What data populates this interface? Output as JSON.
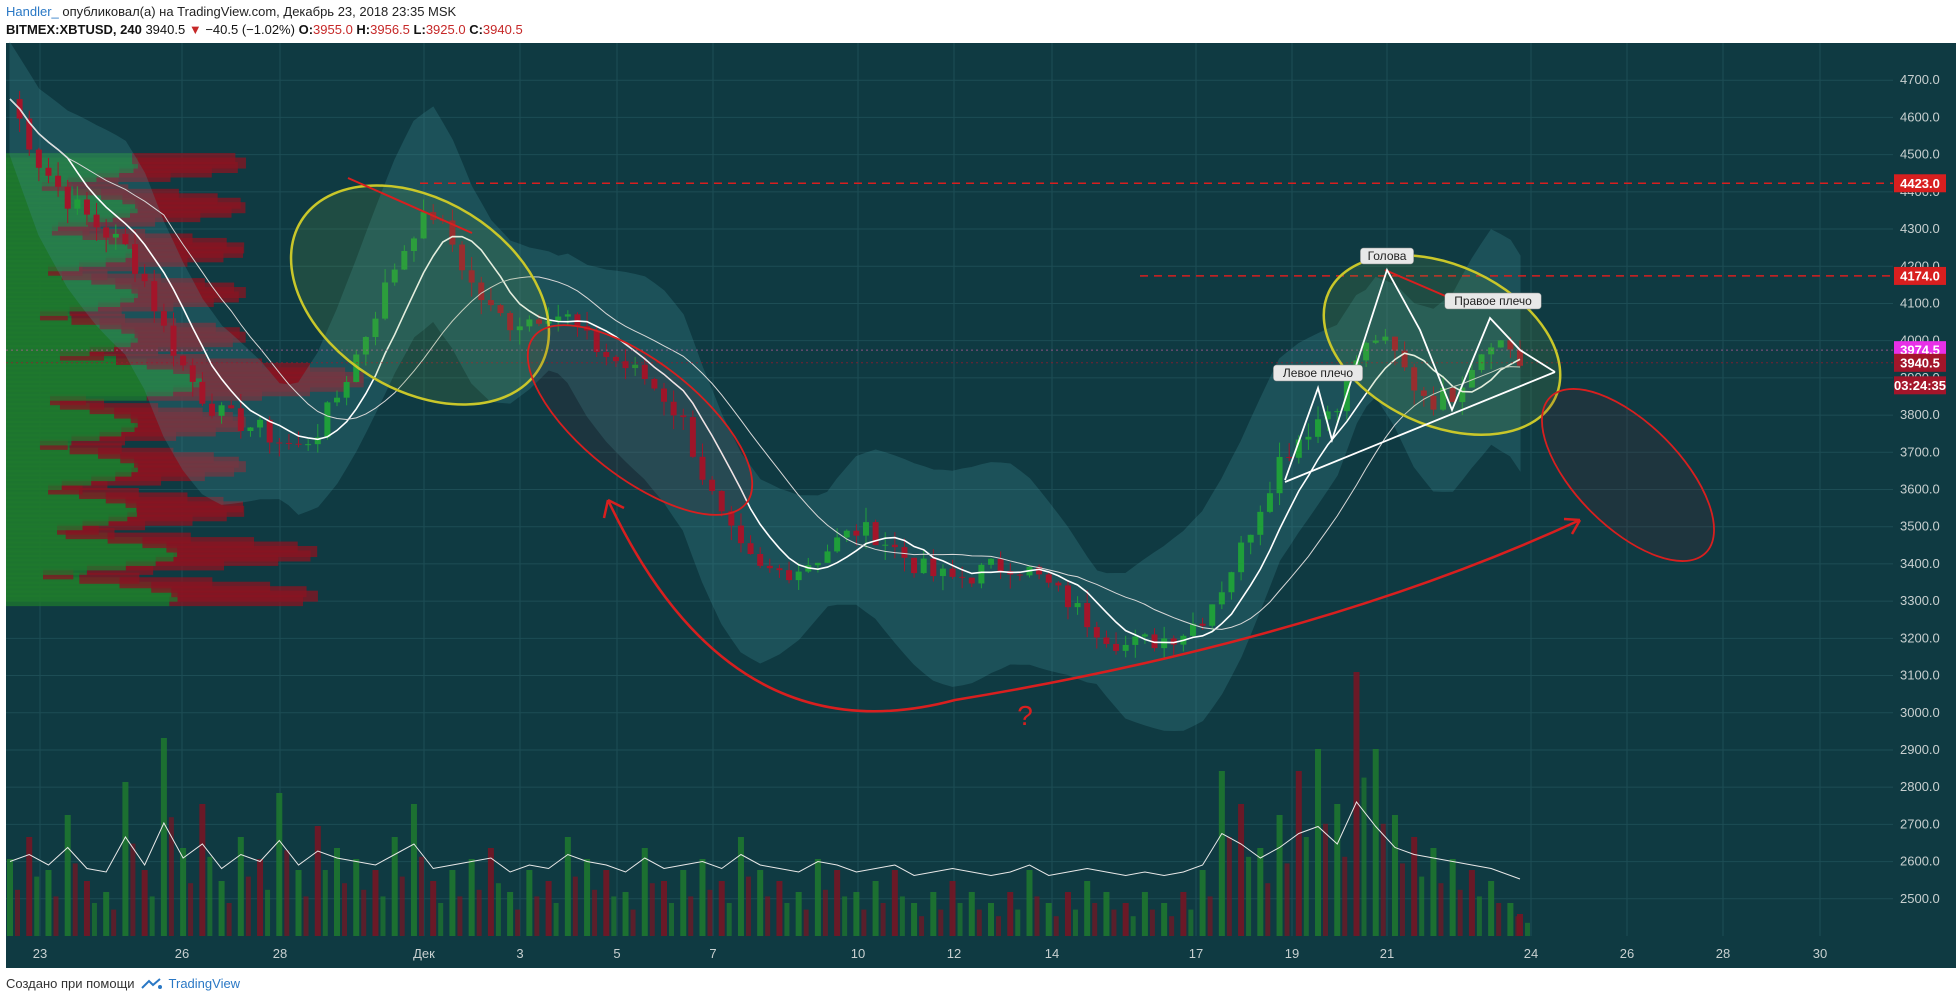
{
  "header": {
    "author": "Handler_",
    "published": "опубликовал(а) на TradingView.com, Декабрь 23, 2018 23:35 MSK"
  },
  "symbol_bar": {
    "symbol": "BITMEX:XBTUSD, 240",
    "last": "3940.5",
    "arrow": "▼",
    "change": "−40.5 (−1.02%)",
    "open_label": "O:",
    "open": "3955.0",
    "high_label": "H:",
    "high": "3956.5",
    "low_label": "L:",
    "low": "3925.0",
    "close_label": "C:",
    "close": "3940.5"
  },
  "footer": {
    "text": "Создано при помощи",
    "brand": "TradingView"
  },
  "colors": {
    "background": "#0f3a42",
    "up": "#1f9e3a",
    "down": "#a3152a",
    "band": "#3f8f96",
    "annotation": "#d81f1f",
    "ellipse": "#c9c72a"
  },
  "chart_data": {
    "type": "candlestick",
    "y_range": [
      2400,
      4800
    ],
    "x_ticks": [
      "23",
      "26",
      "28",
      "Дек",
      "3",
      "5",
      "7",
      "10",
      "12",
      "14",
      "17",
      "19",
      "21",
      "24",
      "26",
      "28",
      "30"
    ],
    "y_ticks": [
      "4700.0",
      "4600.0",
      "4500.0",
      "4400.0",
      "4300.0",
      "4200.0",
      "4100.0",
      "4000.0",
      "3900.0",
      "3800.0",
      "3700.0",
      "3600.0",
      "3500.0",
      "3400.0",
      "3300.0",
      "3200.0",
      "3100.0",
      "3000.0",
      "2900.0",
      "2800.0",
      "2700.0",
      "2600.0",
      "2500.0"
    ],
    "price_labels": [
      {
        "text": "4423.0",
        "value": 4423,
        "color": "#d81f1f"
      },
      {
        "text": "4174.0",
        "value": 4174,
        "color": "#d81f1f"
      },
      {
        "text": "3974.5",
        "value": 3974.5,
        "color": "#e830e8"
      },
      {
        "text": "3940.5",
        "value": 3940.5,
        "color": "#a3152a"
      },
      {
        "text": "03:24:35",
        "value": 3880,
        "color": "#a3152a"
      }
    ],
    "annotations": [
      {
        "text": "Голова",
        "kind": "head"
      },
      {
        "text": "Правое плечо",
        "kind": "right-shoulder"
      },
      {
        "text": "Левое плечо",
        "kind": "left-shoulder"
      },
      {
        "text": "?",
        "kind": "question"
      }
    ],
    "price_path": [
      [
        0,
        4650
      ],
      [
        3,
        4480
      ],
      [
        6,
        4380
      ],
      [
        9,
        4310
      ],
      [
        12,
        4250
      ],
      [
        14,
        4160
      ],
      [
        16,
        4030
      ],
      [
        18,
        3930
      ],
      [
        20,
        3850
      ],
      [
        22,
        3800
      ],
      [
        24,
        3780
      ],
      [
        26,
        3760
      ],
      [
        28,
        3730
      ],
      [
        30,
        3710
      ],
      [
        32,
        3760
      ],
      [
        34,
        3850
      ],
      [
        36,
        3960
      ],
      [
        38,
        4080
      ],
      [
        40,
        4200
      ],
      [
        42,
        4300
      ],
      [
        44,
        4340
      ],
      [
        46,
        4260
      ],
      [
        48,
        4150
      ],
      [
        50,
        4080
      ],
      [
        52,
        4050
      ],
      [
        54,
        4060
      ],
      [
        56,
        4080
      ],
      [
        58,
        4060
      ],
      [
        60,
        4000
      ],
      [
        62,
        3960
      ],
      [
        64,
        3930
      ],
      [
        66,
        3900
      ],
      [
        68,
        3850
      ],
      [
        70,
        3780
      ],
      [
        72,
        3640
      ],
      [
        74,
        3520
      ],
      [
        76,
        3430
      ],
      [
        78,
        3380
      ],
      [
        80,
        3380
      ],
      [
        82,
        3390
      ],
      [
        84,
        3420
      ],
      [
        86,
        3460
      ],
      [
        88,
        3490
      ],
      [
        90,
        3480
      ],
      [
        92,
        3440
      ],
      [
        94,
        3400
      ],
      [
        96,
        3370
      ],
      [
        98,
        3360
      ],
      [
        100,
        3370
      ],
      [
        102,
        3390
      ],
      [
        104,
        3400
      ],
      [
        106,
        3380
      ],
      [
        108,
        3340
      ],
      [
        110,
        3300
      ],
      [
        112,
        3250
      ],
      [
        114,
        3210
      ],
      [
        116,
        3180
      ],
      [
        118,
        3190
      ],
      [
        120,
        3200
      ],
      [
        122,
        3220
      ],
      [
        124,
        3260
      ],
      [
        126,
        3340
      ],
      [
        128,
        3440
      ],
      [
        130,
        3560
      ],
      [
        132,
        3680
      ],
      [
        134,
        3740
      ],
      [
        136,
        3790
      ],
      [
        138,
        3840
      ],
      [
        140,
        3950
      ],
      [
        142,
        4010
      ],
      [
        144,
        3960
      ],
      [
        146,
        3880
      ],
      [
        148,
        3840
      ],
      [
        150,
        3860
      ],
      [
        152,
        3940
      ],
      [
        154,
        4010
      ],
      [
        156,
        3980
      ],
      [
        157,
        3940
      ]
    ],
    "volume": [
      [
        0,
        70
      ],
      [
        2,
        90
      ],
      [
        4,
        60
      ],
      [
        6,
        110
      ],
      [
        8,
        50
      ],
      [
        10,
        40
      ],
      [
        12,
        140
      ],
      [
        14,
        60
      ],
      [
        16,
        180
      ],
      [
        18,
        80
      ],
      [
        20,
        120
      ],
      [
        22,
        50
      ],
      [
        24,
        90
      ],
      [
        26,
        70
      ],
      [
        28,
        130
      ],
      [
        30,
        60
      ],
      [
        32,
        100
      ],
      [
        34,
        80
      ],
      [
        36,
        70
      ],
      [
        38,
        60
      ],
      [
        40,
        90
      ],
      [
        42,
        120
      ],
      [
        44,
        50
      ],
      [
        46,
        60
      ],
      [
        48,
        70
      ],
      [
        50,
        80
      ],
      [
        52,
        40
      ],
      [
        54,
        60
      ],
      [
        56,
        50
      ],
      [
        58,
        90
      ],
      [
        60,
        70
      ],
      [
        62,
        60
      ],
      [
        64,
        40
      ],
      [
        66,
        80
      ],
      [
        68,
        50
      ],
      [
        70,
        60
      ],
      [
        72,
        70
      ],
      [
        74,
        50
      ],
      [
        76,
        90
      ],
      [
        78,
        60
      ],
      [
        80,
        50
      ],
      [
        82,
        40
      ],
      [
        84,
        70
      ],
      [
        86,
        60
      ],
      [
        88,
        40
      ],
      [
        90,
        50
      ],
      [
        92,
        60
      ],
      [
        94,
        30
      ],
      [
        96,
        40
      ],
      [
        98,
        50
      ],
      [
        100,
        40
      ],
      [
        102,
        30
      ],
      [
        104,
        40
      ],
      [
        106,
        60
      ],
      [
        108,
        30
      ],
      [
        110,
        40
      ],
      [
        112,
        50
      ],
      [
        114,
        40
      ],
      [
        116,
        30
      ],
      [
        118,
        40
      ],
      [
        120,
        30
      ],
      [
        122,
        40
      ],
      [
        124,
        60
      ],
      [
        126,
        150
      ],
      [
        128,
        120
      ],
      [
        130,
        80
      ],
      [
        132,
        110
      ],
      [
        134,
        150
      ],
      [
        136,
        170
      ],
      [
        138,
        120
      ],
      [
        140,
        240
      ],
      [
        142,
        170
      ],
      [
        144,
        110
      ],
      [
        146,
        90
      ],
      [
        148,
        80
      ],
      [
        150,
        70
      ],
      [
        152,
        60
      ],
      [
        154,
        50
      ],
      [
        156,
        30
      ],
      [
        157,
        20
      ]
    ]
  }
}
